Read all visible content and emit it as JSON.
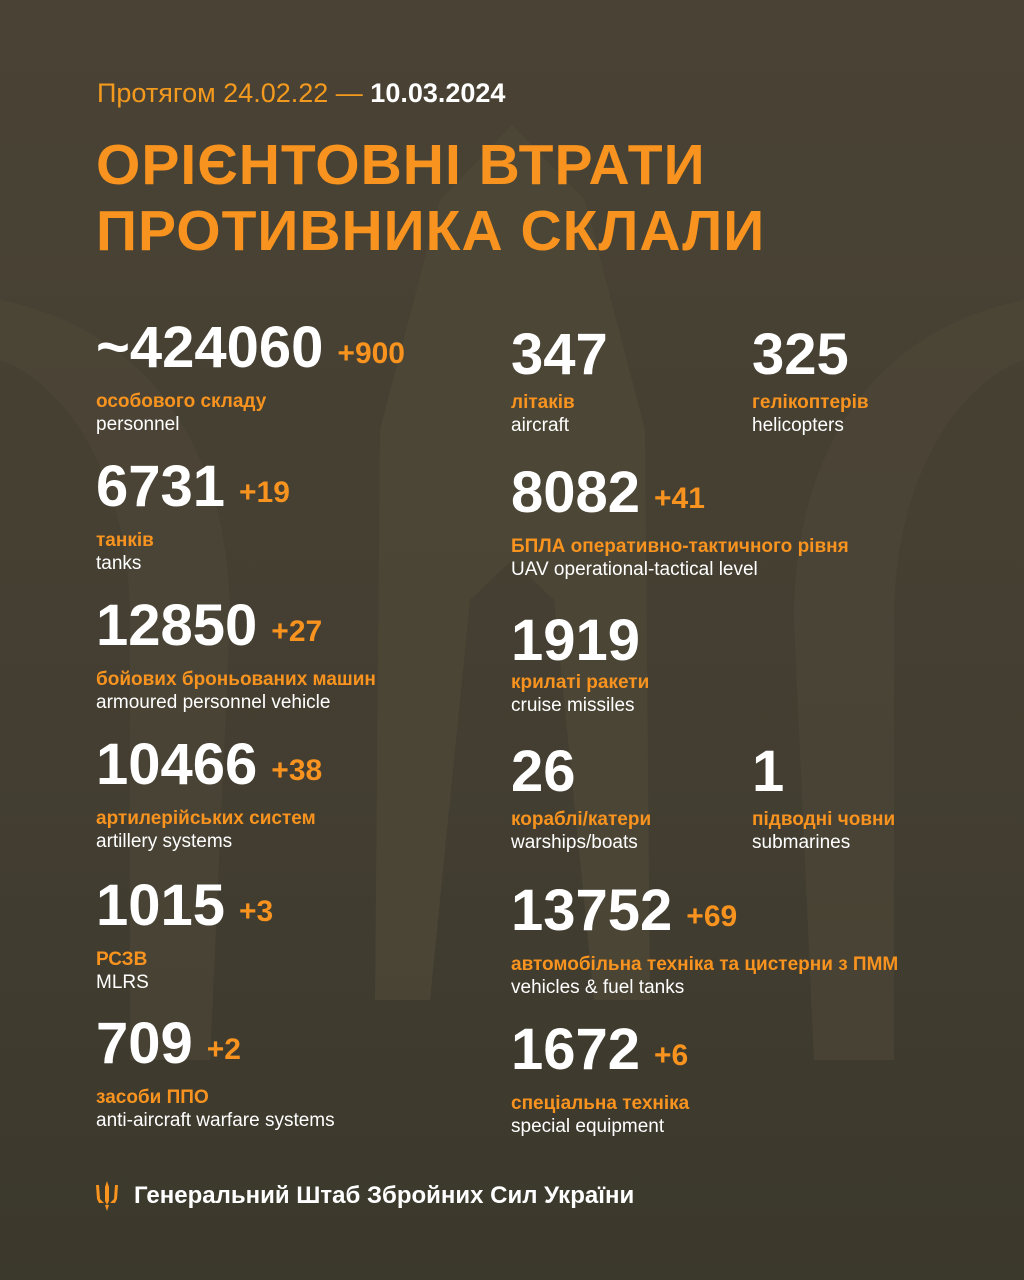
{
  "header": {
    "period_prefix": "Протягом 24.02.22 —",
    "period_end": "10.03.2024",
    "title_line1": "ОРІЄНТОВНІ ВТРАТИ",
    "title_line2": "ПРОТИВНИКА СКЛАЛИ"
  },
  "colors": {
    "accent": "#f7931e",
    "background": "#4a4335",
    "text": "#ffffff"
  },
  "left": [
    {
      "value": "~424060",
      "delta": "+900",
      "ua": "особового складу",
      "en": "personnel"
    },
    {
      "value": "6731",
      "delta": "+19",
      "ua": "танків",
      "en": "tanks"
    },
    {
      "value": "12850",
      "delta": "+27",
      "ua": "бойових броньованих машин",
      "en": "armoured personnel vehicle"
    },
    {
      "value": "10466",
      "delta": "+38",
      "ua": "артилерійських систем",
      "en": "artillery systems"
    },
    {
      "value": "1015",
      "delta": "+3",
      "ua": "РСЗВ",
      "en": "MLRS"
    },
    {
      "value": "709",
      "delta": "+2",
      "ua": "засоби ППО",
      "en": "anti-aircraft warfare systems"
    }
  ],
  "right": [
    {
      "value": "347",
      "ua": "літаків",
      "en": "aircraft"
    },
    {
      "value": "325",
      "ua": "гелікоптерів",
      "en": "helicopters"
    },
    {
      "value": "8082",
      "delta": "+41",
      "ua": "БПЛА оперативно-тактичного рівня",
      "en": "UAV operational-tactical level"
    },
    {
      "value": "1919",
      "ua": "крилаті ракети",
      "en": "cruise missiles"
    },
    {
      "value": "26",
      "ua": "кораблі/катери",
      "en": "warships/boats"
    },
    {
      "value": "1",
      "ua": "підводні човни",
      "en": "submarines"
    },
    {
      "value": "13752",
      "delta": "+69",
      "ua": "автомобільна техніка та цистерни з ПММ",
      "en": "vehicles & fuel tanks"
    },
    {
      "value": "1672",
      "delta": "+6",
      "ua": "спеціальна техніка",
      "en": "special equipment"
    }
  ],
  "footer": {
    "icon": "trident-icon",
    "text": "Генеральний Штаб Збройних Сил України"
  }
}
